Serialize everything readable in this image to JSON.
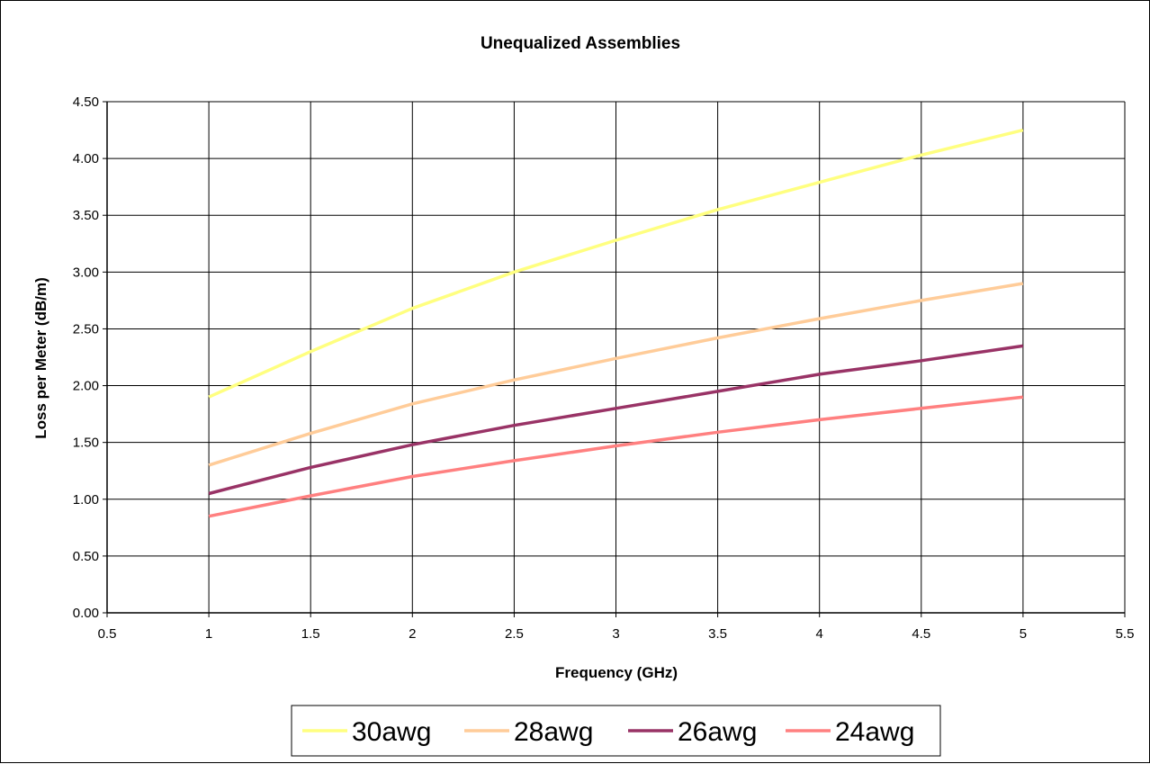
{
  "chart_data": {
    "type": "line",
    "title": "Unequalized Assemblies",
    "xlabel": "Frequency (GHz)",
    "ylabel": "Loss per Meter (dB/m)",
    "xlim": [
      0.5,
      5.5
    ],
    "ylim": [
      0,
      4.5
    ],
    "x_ticks": [
      "0.5",
      "1",
      "1.5",
      "2",
      "2.5",
      "3",
      "3.5",
      "4",
      "4.5",
      "5",
      "5.5"
    ],
    "y_ticks": [
      "0.00",
      "0.50",
      "1.00",
      "1.50",
      "2.00",
      "2.50",
      "3.00",
      "3.50",
      "4.00",
      "4.50"
    ],
    "grid": true,
    "legend_position": "bottom",
    "series": [
      {
        "name": "30awg",
        "color": "#FFFF80",
        "x": [
          1,
          1.5,
          2,
          2.5,
          3,
          3.5,
          4,
          4.5,
          5
        ],
        "y": [
          1.9,
          2.3,
          2.68,
          3.0,
          3.28,
          3.55,
          3.79,
          4.03,
          4.25
        ]
      },
      {
        "name": "28awg",
        "color": "#FFCC99",
        "x": [
          1,
          1.5,
          2,
          2.5,
          3,
          3.5,
          4,
          4.5,
          5
        ],
        "y": [
          1.3,
          1.58,
          1.84,
          2.05,
          2.24,
          2.42,
          2.59,
          2.75,
          2.9
        ]
      },
      {
        "name": "26awg",
        "color": "#993366",
        "x": [
          1,
          1.5,
          2,
          2.5,
          3,
          3.5,
          4,
          4.5,
          5
        ],
        "y": [
          1.05,
          1.28,
          1.48,
          1.65,
          1.8,
          1.95,
          2.1,
          2.22,
          2.35
        ]
      },
      {
        "name": "24awg",
        "color": "#FF8080",
        "x": [
          1,
          1.5,
          2,
          2.5,
          3,
          3.5,
          4,
          4.5,
          5
        ],
        "y": [
          0.85,
          1.03,
          1.2,
          1.34,
          1.47,
          1.59,
          1.7,
          1.8,
          1.9
        ]
      }
    ]
  }
}
